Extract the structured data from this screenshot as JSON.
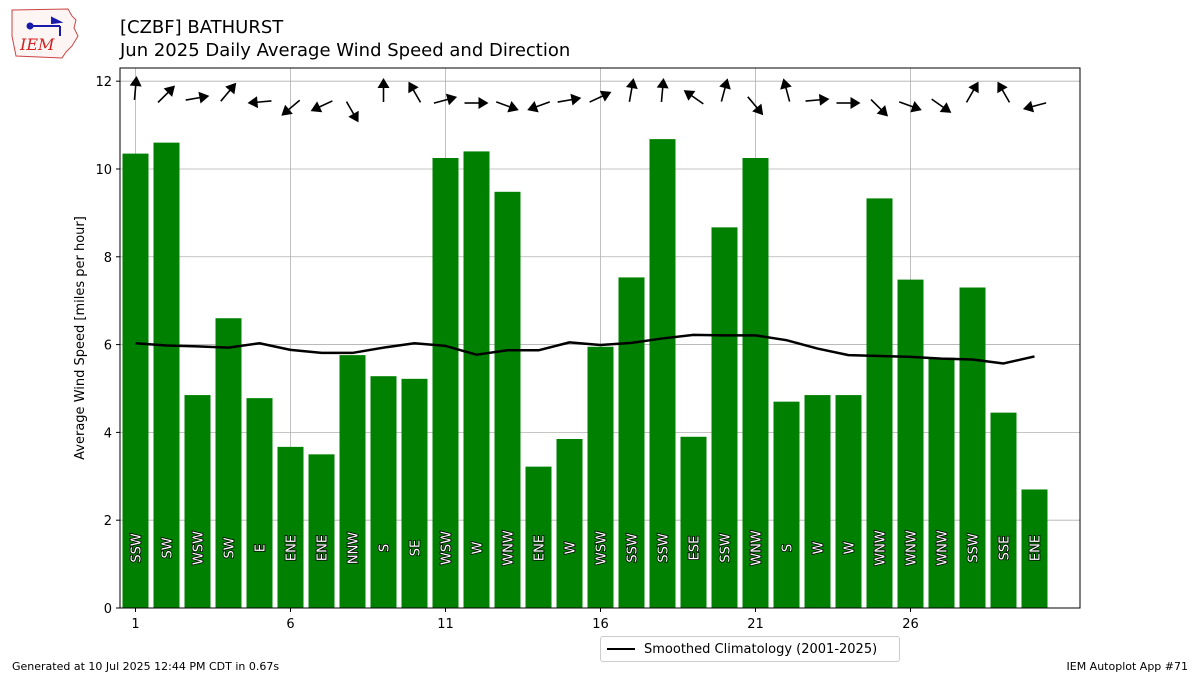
{
  "header": {
    "title": "[CZBF] BATHURST",
    "subtitle": "Jun 2025 Daily Average Wind Speed and Direction",
    "logo_text": "IEM"
  },
  "footer": {
    "generated": "Generated at 10 Jul 2025 12:44 PM CDT in 0.67s",
    "app": "IEM Autoplot App #71"
  },
  "legend": {
    "label": "Smoothed Climatology (2001-2025)"
  },
  "colors": {
    "bar": "#008000",
    "climatology": "#000000",
    "grid": "#b0b0b0"
  },
  "chart_data": {
    "type": "bar",
    "ylabel": "Average Wind Speed [miles per hour]",
    "xlabel": "",
    "ylim": [
      0,
      12.3
    ],
    "yticks": [
      0,
      2,
      4,
      6,
      8,
      10,
      12
    ],
    "xticks": [
      1,
      6,
      11,
      16,
      21,
      26
    ],
    "grid": true,
    "legend_position": "bottom-center",
    "days": [
      1,
      2,
      3,
      4,
      5,
      6,
      7,
      8,
      9,
      10,
      11,
      12,
      13,
      14,
      15,
      16,
      17,
      18,
      19,
      20,
      21,
      22,
      23,
      24,
      25,
      26,
      27,
      28,
      29,
      30
    ],
    "values": [
      10.35,
      10.6,
      4.85,
      6.6,
      4.78,
      3.67,
      3.5,
      5.76,
      5.28,
      5.22,
      10.25,
      10.4,
      9.48,
      3.22,
      3.85,
      5.95,
      7.53,
      10.68,
      3.9,
      8.67,
      10.25,
      4.7,
      4.85,
      4.85,
      9.33,
      7.48,
      5.7,
      7.3,
      4.45,
      2.7
    ],
    "directions": [
      "SSW",
      "SW",
      "WSW",
      "SW",
      "E",
      "ENE",
      "ENE",
      "NNW",
      "S",
      "SE",
      "WSW",
      "W",
      "WNW",
      "ENE",
      "W",
      "WSW",
      "SSW",
      "SSW",
      "ESE",
      "SSW",
      "WNW",
      "S",
      "W",
      "W",
      "WNW",
      "WNW",
      "WNW",
      "SSW",
      "SSE",
      "ENE"
    ],
    "arrow_angles_deg": [
      5,
      45,
      80,
      40,
      -95,
      -130,
      -115,
      150,
      0,
      -30,
      75,
      90,
      110,
      -110,
      80,
      65,
      10,
      5,
      -55,
      15,
      140,
      -15,
      85,
      90,
      135,
      110,
      125,
      30,
      -30,
      -105
    ],
    "climatology": {
      "name": "Smoothed Climatology (2001-2025)",
      "values": [
        6.03,
        5.98,
        5.96,
        5.93,
        6.03,
        5.88,
        5.81,
        5.81,
        5.93,
        6.03,
        5.97,
        5.77,
        5.87,
        5.87,
        6.05,
        5.99,
        6.04,
        6.14,
        6.22,
        6.21,
        6.21,
        6.1,
        5.91,
        5.76,
        5.74,
        5.72,
        5.68,
        5.66,
        5.57,
        5.73
      ]
    }
  }
}
